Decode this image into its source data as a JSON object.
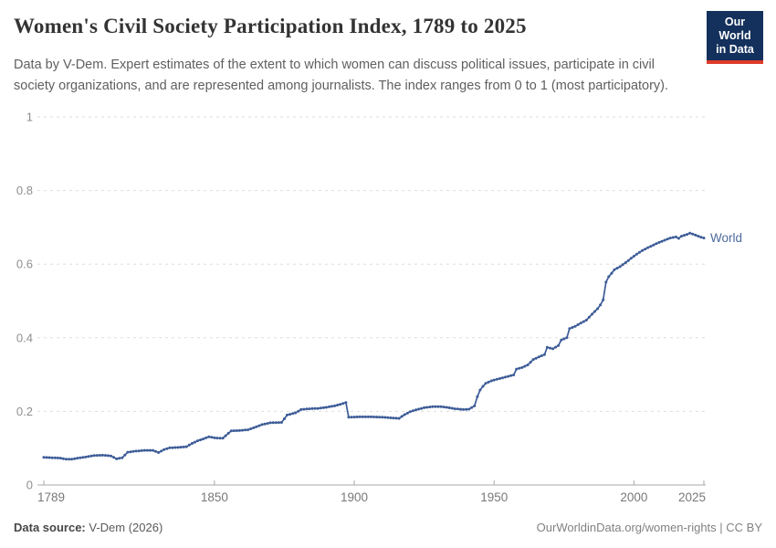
{
  "header": {
    "title": "Women's Civil Society Participation Index, 1789 to 2025",
    "subtitle": "Data by V-Dem. Expert estimates of the extent to which women can discuss political issues, participate in civil society organizations, and are represented among journalists. The index ranges from 0 to 1 (most participatory).",
    "logo": {
      "line1": "Our World",
      "line2": "in Data",
      "bg_color": "#14305c",
      "accent_color": "#dd3b2a"
    }
  },
  "chart_data": {
    "type": "line",
    "title": "Women's Civil Society Participation Index, 1789 to 2025",
    "xlabel": "",
    "ylabel": "",
    "xlim": [
      1789,
      2025
    ],
    "ylim": [
      0,
      1
    ],
    "x_ticks": [
      1789,
      1850,
      1900,
      1950,
      2000,
      2025
    ],
    "y_ticks": [
      0,
      0.2,
      0.4,
      0.6,
      0.8,
      1
    ],
    "grid": "horizontal-dashed",
    "grid_color": "#dedede",
    "axis_color": "#a8a8a8",
    "tick_label_color_x": "#787878",
    "tick_label_color_y": "#8f8f8f",
    "legend_position": "end-of-line",
    "series": [
      {
        "name": "World",
        "color": "#3d5c97",
        "label_color": "#4c6a9c",
        "points": [
          [
            1789,
            0.075
          ],
          [
            1792,
            0.074
          ],
          [
            1795,
            0.073
          ],
          [
            1797,
            0.07
          ],
          [
            1799,
            0.07
          ],
          [
            1801,
            0.073
          ],
          [
            1804,
            0.076
          ],
          [
            1807,
            0.08
          ],
          [
            1810,
            0.081
          ],
          [
            1813,
            0.079
          ],
          [
            1815,
            0.071
          ],
          [
            1817,
            0.074
          ],
          [
            1819,
            0.089
          ],
          [
            1822,
            0.092
          ],
          [
            1825,
            0.094
          ],
          [
            1828,
            0.094
          ],
          [
            1830,
            0.088
          ],
          [
            1832,
            0.096
          ],
          [
            1834,
            0.101
          ],
          [
            1837,
            0.102
          ],
          [
            1840,
            0.104
          ],
          [
            1842,
            0.113
          ],
          [
            1844,
            0.12
          ],
          [
            1846,
            0.125
          ],
          [
            1848,
            0.131
          ],
          [
            1850,
            0.128
          ],
          [
            1853,
            0.127
          ],
          [
            1856,
            0.147
          ],
          [
            1859,
            0.148
          ],
          [
            1862,
            0.15
          ],
          [
            1865,
            0.158
          ],
          [
            1867,
            0.164
          ],
          [
            1870,
            0.169
          ],
          [
            1874,
            0.17
          ],
          [
            1876,
            0.19
          ],
          [
            1879,
            0.196
          ],
          [
            1881,
            0.205
          ],
          [
            1884,
            0.207
          ],
          [
            1887,
            0.208
          ],
          [
            1890,
            0.211
          ],
          [
            1893,
            0.215
          ],
          [
            1895,
            0.219
          ],
          [
            1897,
            0.224
          ],
          [
            1898,
            0.184
          ],
          [
            1902,
            0.185
          ],
          [
            1906,
            0.185
          ],
          [
            1910,
            0.184
          ],
          [
            1914,
            0.182
          ],
          [
            1916,
            0.181
          ],
          [
            1918,
            0.191
          ],
          [
            1920,
            0.199
          ],
          [
            1922,
            0.204
          ],
          [
            1925,
            0.21
          ],
          [
            1928,
            0.213
          ],
          [
            1931,
            0.213
          ],
          [
            1933,
            0.211
          ],
          [
            1936,
            0.207
          ],
          [
            1939,
            0.205
          ],
          [
            1941,
            0.206
          ],
          [
            1943,
            0.215
          ],
          [
            1944,
            0.24
          ],
          [
            1945,
            0.258
          ],
          [
            1946,
            0.268
          ],
          [
            1947,
            0.276
          ],
          [
            1949,
            0.283
          ],
          [
            1951,
            0.287
          ],
          [
            1953,
            0.291
          ],
          [
            1955,
            0.295
          ],
          [
            1957,
            0.299
          ],
          [
            1958,
            0.315
          ],
          [
            1960,
            0.319
          ],
          [
            1962,
            0.326
          ],
          [
            1964,
            0.341
          ],
          [
            1966,
            0.348
          ],
          [
            1968,
            0.354
          ],
          [
            1969,
            0.374
          ],
          [
            1971,
            0.37
          ],
          [
            1973,
            0.379
          ],
          [
            1974,
            0.394
          ],
          [
            1976,
            0.4
          ],
          [
            1977,
            0.425
          ],
          [
            1979,
            0.431
          ],
          [
            1981,
            0.44
          ],
          [
            1983,
            0.448
          ],
          [
            1985,
            0.464
          ],
          [
            1987,
            0.479
          ],
          [
            1988,
            0.489
          ],
          [
            1989,
            0.503
          ],
          [
            1990,
            0.551
          ],
          [
            1991,
            0.566
          ],
          [
            1992,
            0.575
          ],
          [
            1993,
            0.585
          ],
          [
            1995,
            0.593
          ],
          [
            1997,
            0.604
          ],
          [
            1999,
            0.616
          ],
          [
            2001,
            0.627
          ],
          [
            2003,
            0.637
          ],
          [
            2005,
            0.645
          ],
          [
            2007,
            0.652
          ],
          [
            2009,
            0.659
          ],
          [
            2011,
            0.665
          ],
          [
            2013,
            0.671
          ],
          [
            2015,
            0.674
          ],
          [
            2016,
            0.67
          ],
          [
            2017,
            0.676
          ],
          [
            2019,
            0.681
          ],
          [
            2020,
            0.684
          ],
          [
            2021,
            0.682
          ],
          [
            2022,
            0.679
          ],
          [
            2023,
            0.676
          ],
          [
            2024,
            0.673
          ],
          [
            2025,
            0.671
          ]
        ]
      }
    ]
  },
  "footer": {
    "source_label": "Data source:",
    "source_value": "V-Dem (2026)",
    "credit": "OurWorldinData.org/women-rights | CC BY"
  }
}
